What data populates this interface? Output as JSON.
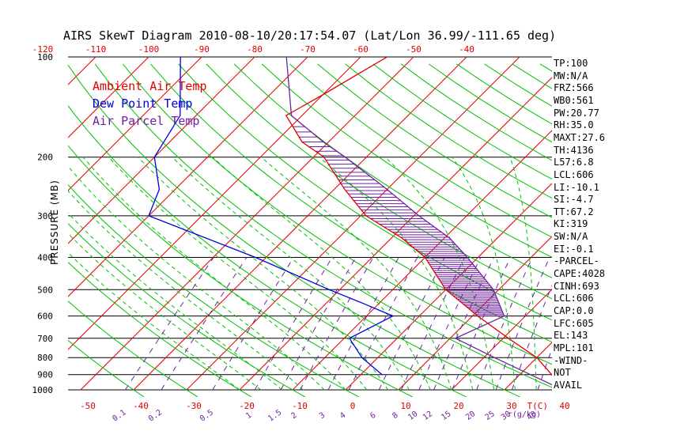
{
  "title": "AIRS SkewT Diagram 2010-08-10/20:17:54.07 (Lat/Lon 36.99/-111.65 deg)",
  "ylabel": "PRESSURE (MB)",
  "xlabel_unit": "T(C)",
  "mix_unit": "r(g/kg)",
  "legend": {
    "ambient": "Ambient Air Temp",
    "dewpoint": "Dew Point Temp",
    "parcel": "Air Parcel Temp"
  },
  "colors": {
    "ambient": "#e00000",
    "dewpoint": "#0000e0",
    "parcel": "#7020a0",
    "isotherm": "#e00000",
    "dry_adiabat": "#00c000",
    "moist_adiabat": "#00c000",
    "mixing_ratio": "#7020a0",
    "isobar": "#000000"
  },
  "indices": [
    "TP:100",
    "MW:N/A",
    "FRZ:566",
    "WB0:561",
    "PW:20.77",
    "RH:35.0",
    "MAXT:27.6",
    "TH:4136",
    "L57:6.8",
    "LCL:606",
    "LI:-10.1",
    "SI:-4.7",
    "TT:67.2",
    "KI:319",
    "SW:N/A",
    "EI:-0.1",
    "-PARCEL-",
    "CAPE:4028",
    "CINH:693",
    "LCL:606",
    "CAP:0.0",
    "LFC:605",
    "EL:143",
    "MPL:101",
    "-WIND-",
    "NOT",
    "AVAIL"
  ],
  "chart_data": {
    "type": "line",
    "title": "AIRS SkewT Diagram 2010-08-10/20:17:54.07 (Lat/Lon 36.99/-111.65 deg)",
    "xlabel": "T(C)",
    "ylabel": "PRESSURE (MB)",
    "y_scale": "log",
    "ylim": [
      1000,
      100
    ],
    "bottom_ticks": [
      "-50",
      "-40",
      "-30",
      "-20",
      "-10",
      "0",
      "10",
      "20",
      "30",
      "40"
    ],
    "top_ticks": [
      "-120",
      "-110",
      "-100",
      "-90",
      "-80",
      "-70",
      "-60",
      "-50",
      "-40"
    ],
    "pressure_ticks": [
      "100",
      "200",
      "300",
      "400",
      "500",
      "600",
      "700",
      "800",
      "900",
      "1000"
    ],
    "mixing_ratio_labels": [
      "0.1",
      "0.2",
      "0.5",
      "1",
      "1.5",
      "2",
      "3",
      "4",
      "6",
      "8",
      "10",
      "12",
      "15",
      "20",
      "25",
      "30",
      "40"
    ],
    "series": [
      {
        "name": "Ambient Air Temp",
        "points": [
          {
            "p": 1000,
            "t": 41
          },
          {
            "p": 900,
            "t": 36
          },
          {
            "p": 800,
            "t": 30
          },
          {
            "p": 700,
            "t": 21
          },
          {
            "p": 600,
            "t": 11
          },
          {
            "p": 500,
            "t": 0
          },
          {
            "p": 400,
            "t": -10
          },
          {
            "p": 350,
            "t": -18
          },
          {
            "p": 300,
            "t": -29
          },
          {
            "p": 250,
            "t": -38
          },
          {
            "p": 200,
            "t": -48
          },
          {
            "p": 180,
            "t": -55
          },
          {
            "p": 150,
            "t": -63
          },
          {
            "p": 130,
            "t": -60
          },
          {
            "p": 100,
            "t": -55
          }
        ]
      },
      {
        "name": "Dew Point Temp",
        "points": [
          {
            "p": 900,
            "t": 4
          },
          {
            "p": 800,
            "t": -3
          },
          {
            "p": 700,
            "t": -9
          },
          {
            "p": 600,
            "t": -5
          },
          {
            "p": 550,
            "t": -13
          },
          {
            "p": 500,
            "t": -22
          },
          {
            "p": 400,
            "t": -42
          },
          {
            "p": 300,
            "t": -70
          },
          {
            "p": 250,
            "t": -73
          },
          {
            "p": 200,
            "t": -80
          },
          {
            "p": 150,
            "t": -83
          },
          {
            "p": 100,
            "t": -94
          }
        ]
      },
      {
        "name": "Air Parcel Temp",
        "points": [
          {
            "p": 1000,
            "t": 41
          },
          {
            "p": 800,
            "t": 22
          },
          {
            "p": 700,
            "t": 11
          },
          {
            "p": 600,
            "t": 16
          },
          {
            "p": 500,
            "t": 9
          },
          {
            "p": 400,
            "t": -2
          },
          {
            "p": 350,
            "t": -9
          },
          {
            "p": 300,
            "t": -19
          },
          {
            "p": 250,
            "t": -30
          },
          {
            "p": 200,
            "t": -44
          },
          {
            "p": 180,
            "t": -51
          },
          {
            "p": 150,
            "t": -62
          },
          {
            "p": 100,
            "t": -74
          }
        ]
      }
    ]
  }
}
